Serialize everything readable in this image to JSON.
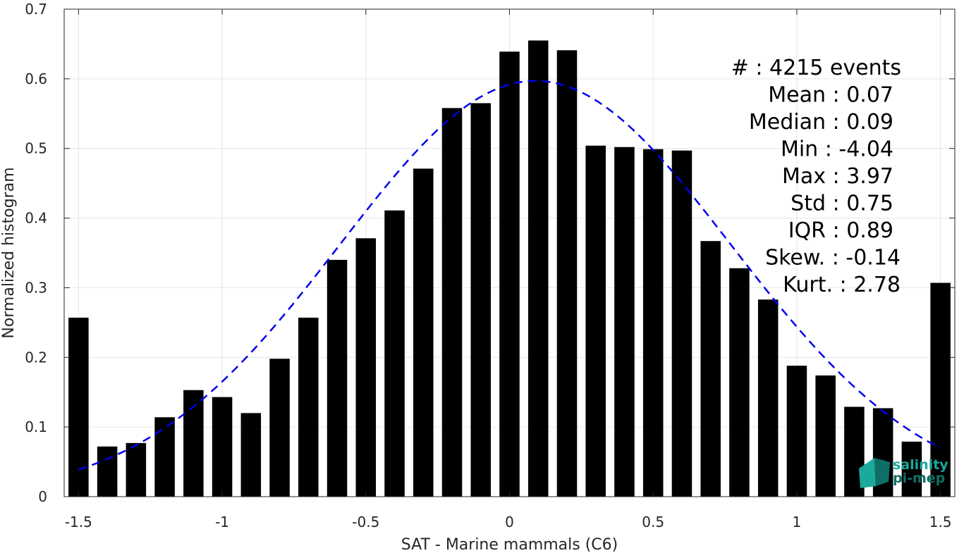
{
  "chart_data": {
    "type": "bar",
    "xlabel": "SAT - Marine mammals (C6)",
    "ylabel": "Normalized histogram",
    "xlim": [
      -1.55,
      1.55
    ],
    "ylim": [
      0,
      0.7
    ],
    "xticks": [
      -1.5,
      -1,
      -0.5,
      0,
      0.5,
      1,
      1.5
    ],
    "xtick_labels": [
      "-1.5",
      "-1",
      "-0.5",
      "0",
      "0.5",
      "1",
      "1.5"
    ],
    "yticks": [
      0,
      0.1,
      0.2,
      0.3,
      0.4,
      0.5,
      0.6,
      0.7
    ],
    "ytick_labels": [
      "0",
      "0.1",
      "0.2",
      "0.3",
      "0.4",
      "0.5",
      "0.6",
      "0.7"
    ],
    "grid": true,
    "bar_color": "#000000",
    "bar_width": 0.07,
    "bars": {
      "x": [
        -1.5,
        -1.4,
        -1.3,
        -1.2,
        -1.1,
        -1.0,
        -0.9,
        -0.8,
        -0.7,
        -0.6,
        -0.5,
        -0.4,
        -0.3,
        -0.2,
        -0.1,
        0.0,
        0.1,
        0.2,
        0.3,
        0.4,
        0.5,
        0.6,
        0.7,
        0.8,
        0.9,
        1.0,
        1.1,
        1.2,
        1.3,
        1.4,
        1.5
      ],
      "values": [
        0.257,
        0.072,
        0.077,
        0.114,
        0.153,
        0.143,
        0.12,
        0.198,
        0.257,
        0.34,
        0.371,
        0.411,
        0.471,
        0.558,
        0.565,
        0.639,
        0.655,
        0.641,
        0.504,
        0.502,
        0.499,
        0.497,
        0.367,
        0.328,
        0.283,
        0.188,
        0.174,
        0.129,
        0.127,
        0.079,
        0.307
      ]
    },
    "fit_curve": {
      "style": "dashed",
      "color": "#0000ee",
      "mean": 0.09,
      "std": 0.68,
      "peak": 0.597,
      "x_range": [
        -1.5,
        1.5
      ]
    },
    "stats": [
      {
        "label": "#",
        "value": ": 4215 events"
      },
      {
        "label": "Mean",
        "value": ": 0.07"
      },
      {
        "label": "Median",
        "value": ": 0.09"
      },
      {
        "label": "Min",
        "value": ": -4.04"
      },
      {
        "label": "Max",
        "value": ": 3.97"
      },
      {
        "label": "Std",
        "value": ": 0.75"
      },
      {
        "label": "IQR",
        "value": ": 0.89"
      },
      {
        "label": "Skew.",
        "value": ": -0.14"
      },
      {
        "label": "Kurt.",
        "value": ": 2.78"
      }
    ]
  },
  "logo": {
    "line1": "salinity",
    "line2": "pi-mep",
    "color_top": "#1aa99a",
    "color_bottom": "#0e6f66"
  }
}
